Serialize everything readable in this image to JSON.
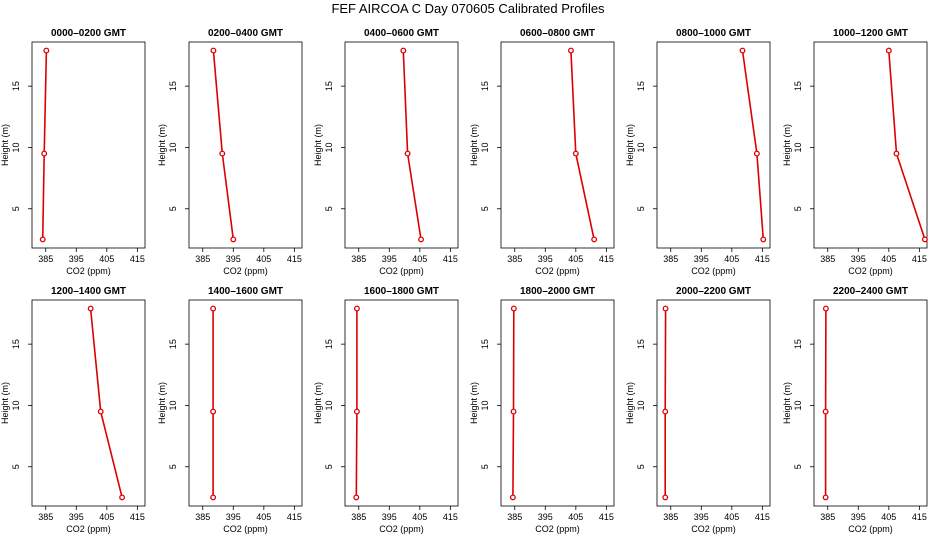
{
  "title": "FEF AIRCOA C  Day 070605  Calibrated Profiles",
  "colors": {
    "series": "#dd0000",
    "axis": "#000000",
    "background": "#ffffff"
  },
  "chart_data": [
    {
      "type": "line",
      "title": "0000–0200 GMT",
      "xlabel": "CO2 (ppm)",
      "ylabel": "Height (m)",
      "xlim": [
        380.5,
        417.5
      ],
      "ylim": [
        1.8,
        18.6
      ],
      "xticks": [
        385,
        395,
        405,
        415
      ],
      "yticks": [
        5,
        10,
        15
      ],
      "x": [
        384.0,
        384.5,
        385.2
      ],
      "y": [
        2.5,
        9.5,
        17.9
      ],
      "grid": false
    },
    {
      "type": "line",
      "title": "0200–0400 GMT",
      "xlabel": "CO2 (ppm)",
      "ylabel": "Height (m)",
      "xlim": [
        380.5,
        417.5
      ],
      "ylim": [
        1.8,
        18.6
      ],
      "xticks": [
        385,
        395,
        405,
        415
      ],
      "yticks": [
        5,
        10,
        15
      ],
      "x": [
        395.0,
        391.4,
        388.5
      ],
      "y": [
        2.5,
        9.5,
        17.9
      ],
      "grid": false
    },
    {
      "type": "line",
      "title": "0400–0600 GMT",
      "xlabel": "CO2 (ppm)",
      "ylabel": "Height (m)",
      "xlim": [
        380.5,
        417.5
      ],
      "ylim": [
        1.8,
        18.6
      ],
      "xticks": [
        385,
        395,
        405,
        415
      ],
      "yticks": [
        5,
        10,
        15
      ],
      "x": [
        405.4,
        401.0,
        399.6
      ],
      "y": [
        2.5,
        9.5,
        17.9
      ],
      "grid": false
    },
    {
      "type": "line",
      "title": "0600–0800 GMT",
      "xlabel": "CO2 (ppm)",
      "ylabel": "Height (m)",
      "xlim": [
        380.5,
        417.5
      ],
      "ylim": [
        1.8,
        18.6
      ],
      "xticks": [
        385,
        395,
        405,
        415
      ],
      "yticks": [
        5,
        10,
        15
      ],
      "x": [
        411.0,
        405.0,
        403.4
      ],
      "y": [
        2.5,
        9.5,
        17.9
      ],
      "grid": false
    },
    {
      "type": "line",
      "title": "0800–1000 GMT",
      "xlabel": "CO2 (ppm)",
      "ylabel": "Height (m)",
      "xlim": [
        380.5,
        417.5
      ],
      "ylim": [
        1.8,
        18.6
      ],
      "xticks": [
        385,
        395,
        405,
        415
      ],
      "yticks": [
        5,
        10,
        15
      ],
      "x": [
        415.3,
        413.2,
        408.5
      ],
      "y": [
        2.5,
        9.5,
        17.9
      ],
      "grid": false
    },
    {
      "type": "line",
      "title": "1000–1200 GMT",
      "xlabel": "CO2 (ppm)",
      "ylabel": "Height (m)",
      "xlim": [
        380.5,
        417.5
      ],
      "ylim": [
        1.8,
        18.6
      ],
      "xticks": [
        385,
        395,
        405,
        415
      ],
      "yticks": [
        5,
        10,
        15
      ],
      "x": [
        416.8,
        407.5,
        405.0
      ],
      "y": [
        2.5,
        9.5,
        17.9
      ],
      "grid": false
    },
    {
      "type": "line",
      "title": "1200–1400 GMT",
      "xlabel": "CO2 (ppm)",
      "ylabel": "Height (m)",
      "xlim": [
        380.5,
        417.5
      ],
      "ylim": [
        1.8,
        18.6
      ],
      "xticks": [
        385,
        395,
        405,
        415
      ],
      "yticks": [
        5,
        10,
        15
      ],
      "x": [
        410.0,
        403.0,
        399.7
      ],
      "y": [
        2.5,
        9.5,
        17.9
      ],
      "grid": false
    },
    {
      "type": "line",
      "title": "1400–1600 GMT",
      "xlabel": "CO2 (ppm)",
      "ylabel": "Height (m)",
      "xlim": [
        380.5,
        417.5
      ],
      "ylim": [
        1.8,
        18.6
      ],
      "xticks": [
        385,
        395,
        405,
        415
      ],
      "yticks": [
        5,
        10,
        15
      ],
      "x": [
        388.4,
        388.4,
        388.4
      ],
      "y": [
        2.5,
        9.5,
        17.9
      ],
      "grid": false
    },
    {
      "type": "line",
      "title": "1600–1800 GMT",
      "xlabel": "CO2 (ppm)",
      "ylabel": "Height (m)",
      "xlim": [
        380.5,
        417.5
      ],
      "ylim": [
        1.8,
        18.6
      ],
      "xticks": [
        385,
        395,
        405,
        415
      ],
      "yticks": [
        5,
        10,
        15
      ],
      "x": [
        384.2,
        384.4,
        384.4
      ],
      "y": [
        2.5,
        9.5,
        17.9
      ],
      "grid": false
    },
    {
      "type": "line",
      "title": "1800–2000 GMT",
      "xlabel": "CO2 (ppm)",
      "ylabel": "Height (m)",
      "xlim": [
        380.5,
        417.5
      ],
      "ylim": [
        1.8,
        18.6
      ],
      "xticks": [
        385,
        395,
        405,
        415
      ],
      "yticks": [
        5,
        10,
        15
      ],
      "x": [
        384.4,
        384.6,
        384.7
      ],
      "y": [
        2.5,
        9.5,
        17.9
      ],
      "grid": false
    },
    {
      "type": "line",
      "title": "2000–2200 GMT",
      "xlabel": "CO2 (ppm)",
      "ylabel": "Height (m)",
      "xlim": [
        380.5,
        417.5
      ],
      "ylim": [
        1.8,
        18.6
      ],
      "xticks": [
        385,
        395,
        405,
        415
      ],
      "yticks": [
        5,
        10,
        15
      ],
      "x": [
        383.2,
        383.2,
        383.3
      ],
      "y": [
        2.5,
        9.5,
        17.9
      ],
      "grid": false
    },
    {
      "type": "line",
      "title": "2200–2400 GMT",
      "xlabel": "CO2 (ppm)",
      "ylabel": "Height (m)",
      "xlim": [
        380.5,
        417.5
      ],
      "ylim": [
        1.8,
        18.6
      ],
      "xticks": [
        385,
        395,
        405,
        415
      ],
      "yticks": [
        5,
        10,
        15
      ],
      "x": [
        384.3,
        384.3,
        384.4
      ],
      "y": [
        2.5,
        9.5,
        17.9
      ],
      "grid": false
    }
  ]
}
